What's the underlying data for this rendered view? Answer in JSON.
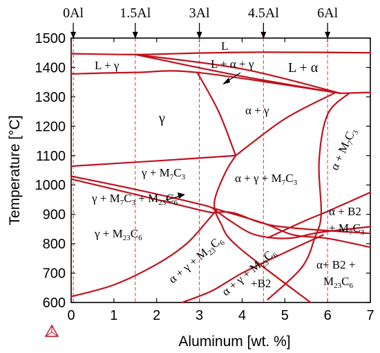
{
  "chart_data": {
    "type": "line",
    "title": "",
    "xlabel": "Aluminum [wt. %]",
    "ylabel": "Temperature [°C]",
    "xlim": [
      0,
      7
    ],
    "ylim": [
      600,
      1500
    ],
    "x_ticks": [
      0,
      1,
      2,
      3,
      4,
      5,
      6,
      7
    ],
    "y_ticks": [
      600,
      700,
      800,
      900,
      1000,
      1100,
      1200,
      1300,
      1400,
      1500
    ],
    "grid": false,
    "reference_lines": [
      {
        "x": 0.05,
        "label": "0Al"
      },
      {
        "x": 1.5,
        "label": "1.5Al"
      },
      {
        "x": 3.0,
        "label": "3Al"
      },
      {
        "x": 4.5,
        "label": "4.5Al"
      },
      {
        "x": 6.0,
        "label": "6Al"
      }
    ],
    "series": [
      {
        "points": [
          [
            0,
            1447
          ],
          [
            1.5,
            1444
          ],
          [
            3,
            1449
          ],
          [
            4.5,
            1452
          ],
          [
            7,
            1450
          ]
        ]
      },
      {
        "points": [
          [
            1.5,
            1444
          ],
          [
            4,
            1395
          ],
          [
            6.3,
            1312
          ]
        ]
      },
      {
        "points": [
          [
            1.5,
            1444
          ],
          [
            4,
            1370
          ],
          [
            6.3,
            1312
          ]
        ]
      },
      {
        "points": [
          [
            6.3,
            1312
          ],
          [
            7,
            1315
          ]
        ]
      },
      {
        "points": [
          [
            0,
            1378
          ],
          [
            1.5,
            1383
          ],
          [
            2.95,
            1383
          ],
          [
            6.3,
            1312
          ]
        ]
      },
      {
        "points": [
          [
            2.95,
            1383
          ],
          [
            3.45,
            1250
          ],
          [
            3.85,
            1100
          ]
        ]
      },
      {
        "points": [
          [
            3.85,
            1100
          ],
          [
            5,
            1225
          ],
          [
            6.15,
            1312
          ]
        ]
      },
      {
        "points": [
          [
            0,
            1064
          ],
          [
            2,
            1082
          ],
          [
            3.85,
            1100
          ]
        ]
      },
      {
        "points": [
          [
            3.85,
            1100
          ],
          [
            3.6,
            1040
          ],
          [
            3.35,
            940
          ],
          [
            3.5,
            870
          ],
          [
            3.9,
            790
          ],
          [
            5.6,
            600
          ]
        ]
      },
      {
        "points": [
          [
            6.5,
            1312
          ],
          [
            6,
            1240
          ],
          [
            5.8,
            1080
          ],
          [
            5.85,
            900
          ],
          [
            5.7,
            820
          ],
          [
            5.4,
            720
          ],
          [
            4.6,
            610
          ]
        ]
      },
      {
        "points": [
          [
            0,
            1030
          ],
          [
            1.5,
            985
          ],
          [
            3,
            935
          ],
          [
            3.4,
            918
          ],
          [
            4.5,
            870
          ],
          [
            5.2,
            830
          ],
          [
            6,
            818
          ],
          [
            7,
            788
          ]
        ]
      },
      {
        "points": [
          [
            0,
            1020
          ],
          [
            1.5,
            968
          ],
          [
            3,
            915
          ],
          [
            3.35,
            905
          ]
        ]
      },
      {
        "points": [
          [
            3.35,
            905
          ],
          [
            3.8,
            905
          ],
          [
            4.8,
            860
          ],
          [
            7,
            835
          ]
        ]
      },
      {
        "points": [
          [
            3.3,
            922
          ],
          [
            3.7,
            880
          ],
          [
            4.2,
            836
          ],
          [
            4.7,
            820
          ],
          [
            5.2,
            820
          ],
          [
            5.8,
            838
          ],
          [
            7,
            858
          ]
        ]
      },
      {
        "points": [
          [
            4.6,
            820
          ],
          [
            5.5,
            880
          ],
          [
            6,
            910
          ],
          [
            7,
            975
          ]
        ]
      },
      {
        "points": [
          [
            0,
            620
          ],
          [
            1,
            660
          ],
          [
            2,
            730
          ],
          [
            2.7,
            800
          ],
          [
            3.2,
            880
          ],
          [
            3.4,
            915
          ]
        ]
      },
      {
        "points": [
          [
            2.6,
            600
          ],
          [
            3.3,
            640
          ],
          [
            4,
            700
          ],
          [
            5,
            770
          ],
          [
            5.9,
            830
          ]
        ]
      }
    ],
    "annotations": {
      "L": "L",
      "L_gamma": "L + γ",
      "L_alpha_gamma": "L + α + γ",
      "L_alpha": "L + α",
      "alpha_gamma": "α + γ",
      "gamma": "γ",
      "gamma_M7C3": {
        "main": "γ + M",
        "s1": "7",
        "mid": "C",
        "s2": "3"
      },
      "alpha_gamma_M7C3": {
        "main": "α + γ + M",
        "s1": "7",
        "mid": "C",
        "s2": "3"
      },
      "gamma_M7C3_M23C6": {
        "a": "γ + M",
        "s1": "7",
        "b": "C",
        "s2": "3",
        "c": " + M",
        "s3": "23",
        "d": "C",
        "s4": "6"
      },
      "gamma_M23C6": {
        "main": "γ + M",
        "s1": "23",
        "mid": "C",
        "s2": "6"
      },
      "alpha_gamma_M23C6": {
        "main": "α + γ + M",
        "s1": "23",
        "mid": "C",
        "s2": "6"
      },
      "alpha_gamma_M23C6_B2": {
        "main": "α + γ + M",
        "s1": "23",
        "mid": "C",
        "s2": "6",
        "line2": "+B2"
      },
      "alpha_M7C3": {
        "main": "α + M",
        "s1": "7",
        "mid": "C",
        "s2": "3"
      },
      "alpha_B2_M7C3": {
        "line1": "α + B2",
        "line2": "+ M",
        "s1": "7",
        "mid": "C",
        "s2": "3"
      },
      "alpha_B2_M23C6": {
        "line1": "α+ B2 +",
        "line2": "M",
        "s1": "23",
        "mid": "C",
        "s2": "6"
      }
    }
  }
}
